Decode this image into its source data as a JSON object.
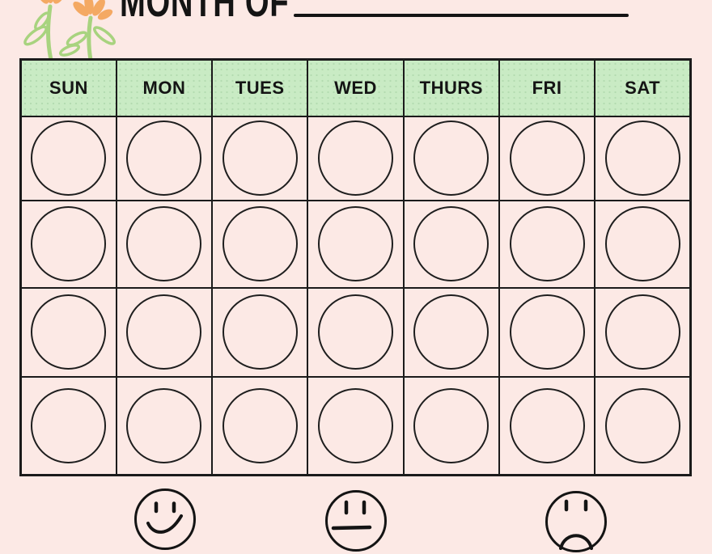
{
  "header": {
    "title": "MONTH OF"
  },
  "decoration": {
    "flower_illustration": "two-orange-flowers-with-green-stems",
    "petal_color": "#f4a963",
    "stem_color": "#a8d37f"
  },
  "colors": {
    "page_background": "#fce9e5",
    "header_green": "#c9ebc4",
    "ink_black": "#141414"
  },
  "calendar": {
    "day_headers": [
      "SUN",
      "MON",
      "TUES",
      "WED",
      "THURS",
      "FRI",
      "SAT"
    ],
    "week_rows": 4,
    "columns": 7
  },
  "mood_legend": {
    "items": [
      {
        "name": "happy",
        "icon": "happy-face-icon"
      },
      {
        "name": "neutral",
        "icon": "neutral-face-icon"
      },
      {
        "name": "sad",
        "icon": "sad-face-icon"
      }
    ]
  }
}
